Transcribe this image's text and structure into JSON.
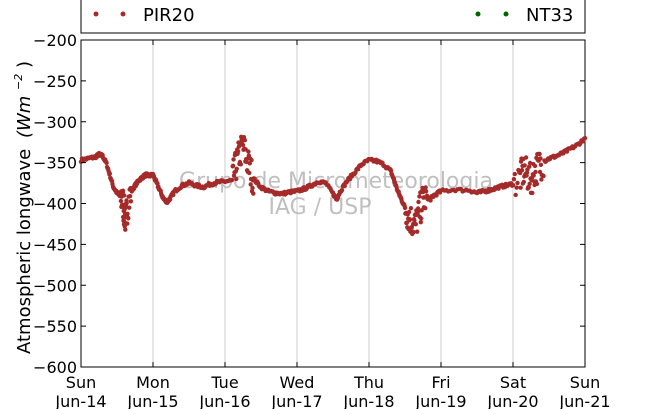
{
  "chart_data": {
    "type": "scatter",
    "ylabel": "Atmospheric longwave",
    "ylabel_unit_math": "(Wm",
    "ylabel_unit_exp": "−2",
    "ylabel_unit_close": ")",
    "ylim": [
      -600,
      -200
    ],
    "yticks": [
      -200,
      -250,
      -300,
      -350,
      -400,
      -450,
      -500,
      -550,
      -600
    ],
    "ytick_labels": [
      "−200",
      "−250",
      "−300",
      "−350",
      "−400",
      "−450",
      "−500",
      "−550",
      "−600"
    ],
    "xlim_days": [
      0,
      7
    ],
    "xticks": [
      {
        "day": "Sun",
        "date": "Jun-14"
      },
      {
        "day": "Mon",
        "date": "Jun-15"
      },
      {
        "day": "Tue",
        "date": "Jun-16"
      },
      {
        "day": "Wed",
        "date": "Jun-17"
      },
      {
        "day": "Thu",
        "date": "Jun-18"
      },
      {
        "day": "Fri",
        "date": "Jun-19"
      },
      {
        "day": "Sat",
        "date": "Jun-20"
      },
      {
        "day": "Sun",
        "date": "Jun-21"
      }
    ],
    "grid": "x-only",
    "legend_placement": "top",
    "series": [
      {
        "name": "PIR20",
        "color": "#a52a2a",
        "points": [
          [
            0.0,
            -347
          ],
          [
            0.1,
            -345
          ],
          [
            0.2,
            -343
          ],
          [
            0.25,
            -340
          ],
          [
            0.3,
            -342
          ],
          [
            0.35,
            -350
          ],
          [
            0.4,
            -365
          ],
          [
            0.45,
            -380
          ],
          [
            0.5,
            -387
          ],
          [
            0.55,
            -392
          ],
          [
            0.58,
            -398
          ],
          [
            0.6,
            -410
          ],
          [
            0.62,
            -420
          ],
          [
            0.65,
            -400
          ],
          [
            0.7,
            -385
          ],
          [
            0.75,
            -378
          ],
          [
            0.8,
            -372
          ],
          [
            0.85,
            -368
          ],
          [
            0.9,
            -365
          ],
          [
            0.95,
            -366
          ],
          [
            1.0,
            -365
          ],
          [
            1.05,
            -375
          ],
          [
            1.1,
            -385
          ],
          [
            1.15,
            -395
          ],
          [
            1.2,
            -398
          ],
          [
            1.25,
            -392
          ],
          [
            1.3,
            -385
          ],
          [
            1.4,
            -378
          ],
          [
            1.5,
            -375
          ],
          [
            1.6,
            -378
          ],
          [
            1.7,
            -380
          ],
          [
            1.8,
            -376
          ],
          [
            1.9,
            -374
          ],
          [
            2.0,
            -373
          ],
          [
            2.1,
            -372
          ],
          [
            2.15,
            -355
          ],
          [
            2.2,
            -340
          ],
          [
            2.25,
            -330
          ],
          [
            2.3,
            -345
          ],
          [
            2.35,
            -360
          ],
          [
            2.4,
            -370
          ],
          [
            2.5,
            -380
          ],
          [
            2.6,
            -385
          ],
          [
            2.7,
            -387
          ],
          [
            2.8,
            -388
          ],
          [
            2.9,
            -386
          ],
          [
            3.0,
            -385
          ],
          [
            3.1,
            -382
          ],
          [
            3.2,
            -378
          ],
          [
            3.3,
            -373
          ],
          [
            3.4,
            -375
          ],
          [
            3.5,
            -388
          ],
          [
            3.55,
            -395
          ],
          [
            3.6,
            -385
          ],
          [
            3.7,
            -372
          ],
          [
            3.8,
            -362
          ],
          [
            3.9,
            -352
          ],
          [
            4.0,
            -347
          ],
          [
            4.1,
            -348
          ],
          [
            4.2,
            -352
          ],
          [
            4.3,
            -360
          ],
          [
            4.35,
            -372
          ],
          [
            4.4,
            -385
          ],
          [
            4.45,
            -395
          ],
          [
            4.5,
            -405
          ],
          [
            4.55,
            -415
          ],
          [
            4.6,
            -422
          ],
          [
            4.65,
            -425
          ],
          [
            4.7,
            -410
          ],
          [
            4.75,
            -395
          ],
          [
            4.8,
            -392
          ],
          [
            4.85,
            -395
          ],
          [
            4.9,
            -390
          ],
          [
            5.0,
            -385
          ],
          [
            5.2,
            -383
          ],
          [
            5.4,
            -384
          ],
          [
            5.5,
            -387
          ],
          [
            5.6,
            -385
          ],
          [
            5.7,
            -383
          ],
          [
            5.8,
            -380
          ],
          [
            5.9,
            -378
          ],
          [
            6.0,
            -376
          ],
          [
            6.1,
            -368
          ],
          [
            6.15,
            -360
          ],
          [
            6.2,
            -365
          ],
          [
            6.25,
            -372
          ],
          [
            6.3,
            -360
          ],
          [
            6.35,
            -355
          ],
          [
            6.4,
            -350
          ],
          [
            6.5,
            -345
          ],
          [
            6.6,
            -342
          ],
          [
            6.7,
            -338
          ],
          [
            6.8,
            -333
          ],
          [
            6.9,
            -328
          ],
          [
            7.0,
            -320
          ]
        ]
      },
      {
        "name": "NT33",
        "color": "#006400",
        "points": []
      }
    ],
    "watermark_line1": "Grupo de Micrometeorologia",
    "watermark_line2": "IAG / USP"
  }
}
